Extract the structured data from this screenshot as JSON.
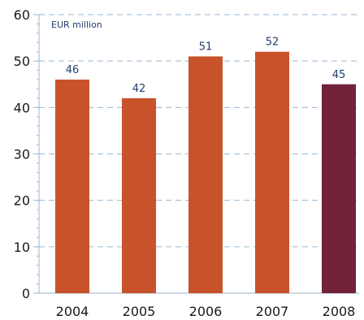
{
  "chart_data": {
    "type": "bar",
    "unit_label": "EUR million",
    "categories": [
      "2004",
      "2005",
      "2006",
      "2007",
      "2008"
    ],
    "values": [
      46,
      42,
      51,
      52,
      45
    ],
    "data_labels": [
      "46",
      "42",
      "51",
      "52",
      "45"
    ],
    "ylim": [
      0,
      60
    ],
    "yticks": [
      0,
      10,
      20,
      30,
      40,
      50,
      60
    ],
    "grid": true,
    "colors": {
      "default_bar": "#c8532a",
      "highlight_bar": "#722239",
      "grid": "#9ab6cf",
      "label": "#1f3f6e"
    },
    "highlight_category": "2008"
  }
}
